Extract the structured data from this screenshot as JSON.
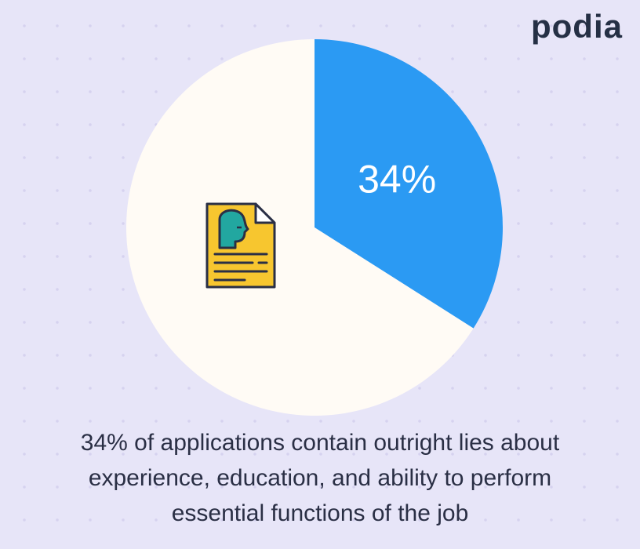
{
  "brand": "podia",
  "chart_data": {
    "type": "pie",
    "values": [
      34,
      66
    ],
    "value_labels": [
      "34%",
      null
    ],
    "colors": [
      "#2b9af3",
      "#fffbf5"
    ],
    "start_angle": 0,
    "direction": "clockwise",
    "caption": "34% of applications contain outright lies about experience, education, and ability to perform essential functions of the job"
  }
}
